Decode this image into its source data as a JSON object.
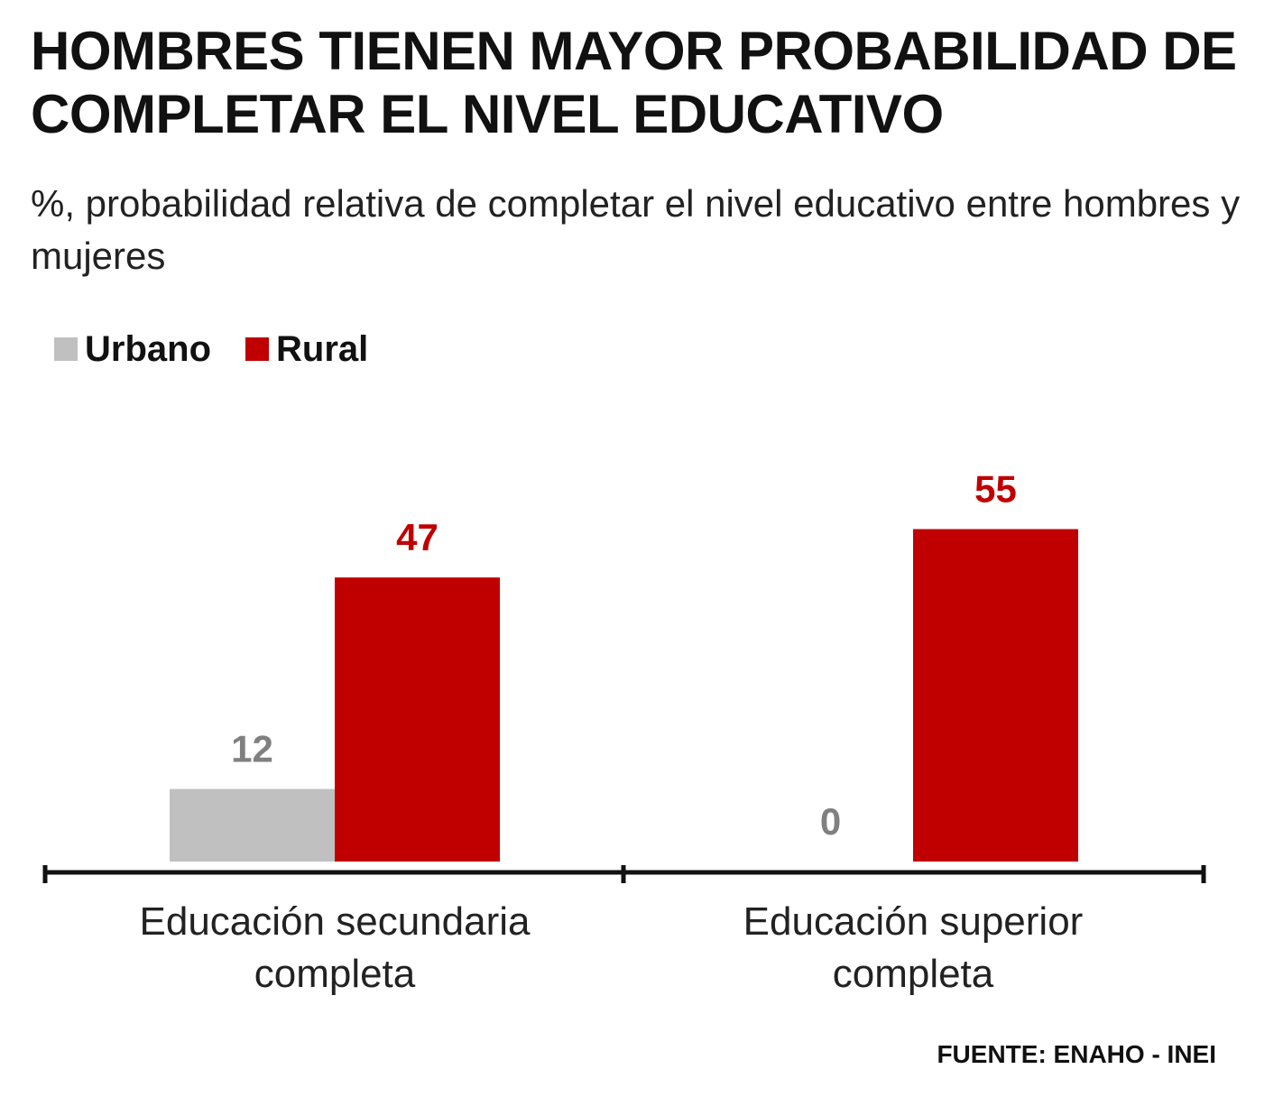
{
  "title": "HOMBRES TIENEN MAYOR PROBABILIDAD DE COMPLETAR EL NIVEL EDUCATIVO",
  "subtitle": "%, probabilidad relativa de completar el nivel educativo entre hombres y mujeres",
  "source": "FUENTE: ENAHO - INEI",
  "colors": {
    "urbano": "#c0c0c0",
    "rural": "#c00000",
    "urbano_label": "#808080",
    "rural_label": "#c00000",
    "axis": "#111111"
  },
  "chart_data": {
    "type": "bar",
    "title": "HOMBRES TIENEN MAYOR PROBABILIDAD DE COMPLETAR EL NIVEL EDUCATIVO",
    "subtitle": "%, probabilidad relativa de completar el nivel educativo entre hombres y mujeres",
    "categories": [
      "Educación secundaria completa",
      "Educación superior completa"
    ],
    "series": [
      {
        "name": "Urbano",
        "values": [
          12,
          0
        ]
      },
      {
        "name": "Rural",
        "values": [
          47,
          55
        ]
      }
    ],
    "ylim": [
      0,
      55
    ],
    "grid": false,
    "legend": "top-left",
    "xlabel": "",
    "ylabel": ""
  }
}
